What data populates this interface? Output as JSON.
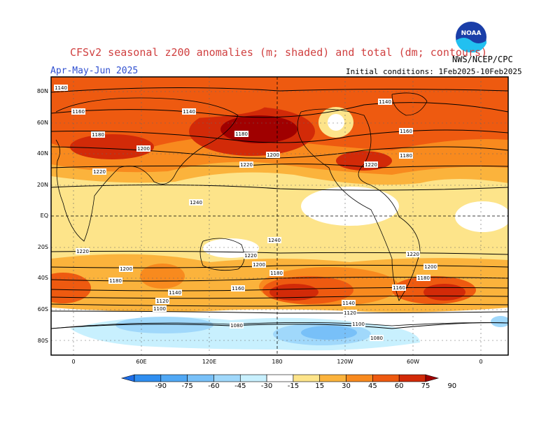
{
  "title": "CFSv2 seasonal z200 anomalies (m; shaded) and total (dm; contours)",
  "agency": "NWS/NCEP/CPC",
  "logo_text": "NOAA",
  "period": "Apr-May-Jun 2025",
  "initial_conditions": "Initial conditions: 1Feb2025-10Feb2025",
  "lat_labels": [
    "80N",
    "60N",
    "40N",
    "20N",
    "EQ",
    "20S",
    "40S",
    "60S",
    "80S"
  ],
  "lon_labels": [
    "0",
    "60E",
    "120E",
    "180",
    "120W",
    "60W",
    "0"
  ],
  "contour_labels": [
    "1140",
    "1160",
    "1180",
    "1200",
    "1220",
    "1240",
    "1220",
    "1200",
    "1180",
    "1160",
    "1140",
    "1120",
    "1100",
    "1080"
  ],
  "colorbar": {
    "ticks": [
      "-90",
      "-75",
      "-60",
      "-45",
      "-30",
      "-15",
      "15",
      "30",
      "45",
      "60",
      "75",
      "90"
    ],
    "colors": [
      "#1e6ee8",
      "#2f8ef0",
      "#50a8f5",
      "#78c0f8",
      "#a0d8fb",
      "#c8f0fe",
      "#ffffff",
      "#fde48a",
      "#fbb33c",
      "#f88a1e",
      "#ee5a10",
      "#d22a08",
      "#a00000"
    ]
  },
  "colors": {
    "title": "#d04040",
    "period": "#3050d0"
  }
}
